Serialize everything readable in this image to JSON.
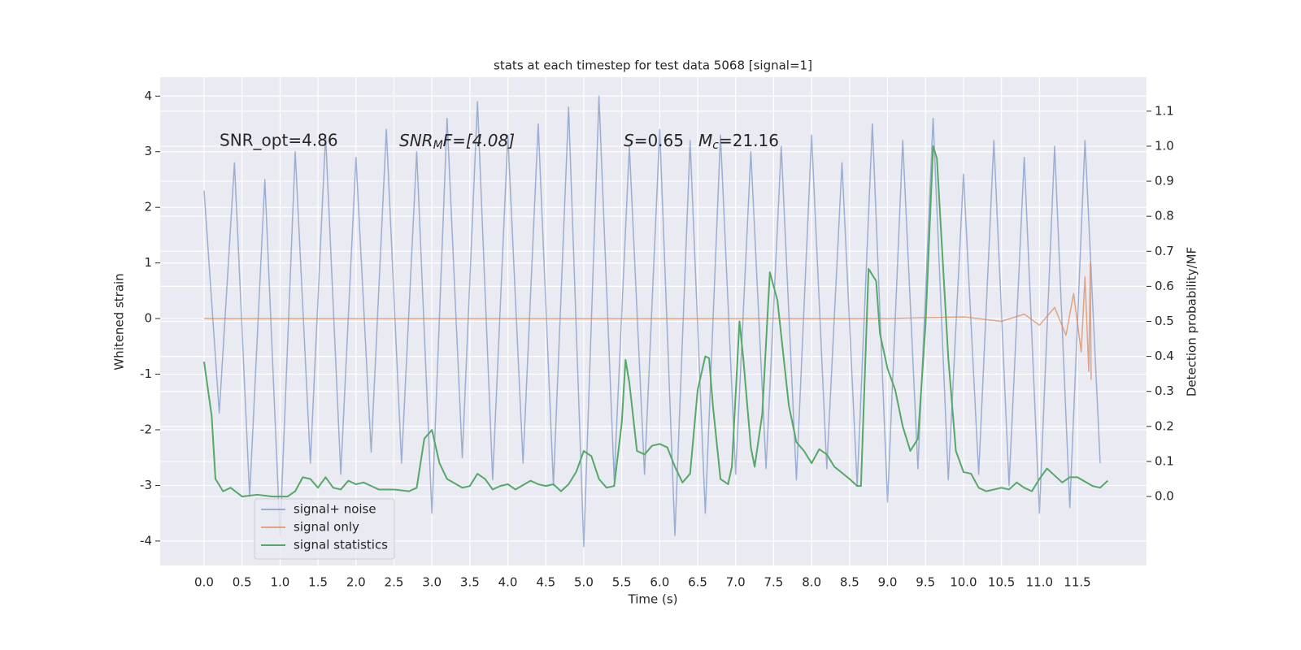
{
  "chart_data": {
    "type": "line",
    "title": "stats at each timestep for test data 5068 [signal=1]",
    "x_label": "Time (s)",
    "y_label": "Whitened strain",
    "y2_label": "Detection probability/MF",
    "annotations": [
      {
        "text": "SNR_opt=4.86"
      },
      {
        "italic": "SNR",
        "sub": "M",
        "text": "F=[4.08]"
      },
      {
        "italic": "S",
        "text": "=0.65"
      },
      {
        "italic": "M",
        "sub": "c",
        "text": "=21.16"
      }
    ],
    "xlim": [
      -0.578,
      12.41
    ],
    "ylim": [
      -4.44,
      4.34
    ],
    "y2lim": [
      -0.197,
      1.197
    ],
    "xticks": [
      {
        "value": 0,
        "label": "0.0"
      },
      0.5,
      {
        "value": 1,
        "label": "1.0"
      },
      1.5,
      {
        "value": 2,
        "label": "2.0"
      },
      2.5,
      {
        "value": 3,
        "label": "3.0"
      },
      3.5,
      {
        "value": 4,
        "label": "4.0"
      },
      4.5,
      {
        "value": 5,
        "label": "5.0"
      },
      5.5,
      {
        "value": 6,
        "label": "6.0"
      },
      6.5,
      {
        "value": 7,
        "label": "7.0"
      },
      7.5,
      {
        "value": 8,
        "label": "8.0"
      },
      8.5,
      {
        "value": 9,
        "label": "9.0"
      },
      9.5,
      {
        "value": 10,
        "label": "10.0"
      },
      10.5,
      {
        "value": 11,
        "label": "11.0"
      },
      11.5
    ],
    "yticks": [
      -4,
      -3,
      -2,
      -1,
      0,
      1,
      2,
      3,
      4
    ],
    "y2ticks": [
      {
        "value": 0,
        "label": "0.0"
      },
      0.1,
      0.2,
      0.3,
      0.4,
      0.5,
      0.6,
      0.7,
      0.8,
      0.9,
      {
        "value": 1,
        "label": "1.0"
      },
      1.1
    ],
    "grid": true,
    "legend": "lower left",
    "series": [
      {
        "name": "signal+ noise",
        "color": "#4c72b0",
        "opacity": 0.5,
        "x": [
          0,
          0.2,
          0.4,
          0.6,
          0.8,
          1,
          1.2,
          1.4,
          1.6,
          1.8,
          2,
          2.2,
          2.4,
          2.6,
          2.8,
          3,
          3.2,
          3.4,
          3.6,
          3.8,
          4,
          4.2,
          4.4,
          4.6,
          4.8,
          5,
          5.2,
          5.4,
          5.6,
          5.8,
          6,
          6.2,
          6.4,
          6.6,
          6.8,
          7,
          7.2,
          7.4,
          7.6,
          7.8,
          8,
          8.2,
          8.4,
          8.6,
          8.8,
          9,
          9.2,
          9.4,
          9.6,
          9.8,
          10,
          10.2,
          10.4,
          10.6,
          10.8,
          11,
          11.2,
          11.4,
          11.6,
          11.8
        ],
        "values": [
          2.3,
          -1.7,
          2.8,
          -3.2,
          2.5,
          -3.9,
          3.0,
          -2.6,
          3.3,
          -2.8,
          2.9,
          -2.4,
          3.4,
          -2.6,
          3.0,
          -3.5,
          3.6,
          -2.5,
          3.9,
          -2.9,
          3.3,
          -2.6,
          3.5,
          -3.0,
          3.8,
          -4.1,
          4.0,
          -2.9,
          3.1,
          -2.8,
          3.4,
          -3.9,
          3.2,
          -3.5,
          3.3,
          -2.8,
          3.0,
          -2.7,
          3.1,
          -2.9,
          3.3,
          -2.7,
          2.8,
          -3.0,
          3.5,
          -3.3,
          3.2,
          -2.7,
          3.6,
          -2.9,
          2.6,
          -2.8,
          3.2,
          -3.0,
          2.9,
          -3.5,
          3.1,
          -3.4,
          3.2,
          -2.6
        ]
      },
      {
        "name": "signal only",
        "color": "#dd8452",
        "opacity": 0.7,
        "x": [
          0,
          9,
          10,
          10.5,
          10.8,
          11.0,
          11.2,
          11.35,
          11.45,
          11.55,
          11.6,
          11.65,
          11.67,
          11.68
        ],
        "values": [
          0,
          0,
          0.03,
          -0.05,
          0.08,
          -0.12,
          0.2,
          -0.3,
          0.45,
          -0.6,
          0.75,
          -0.95,
          1.0,
          -1.1
        ]
      },
      {
        "name": "signal statistics",
        "color": "#55a868",
        "opacity": 1,
        "axis": "y2",
        "x": [
          0,
          0.1,
          0.15,
          0.25,
          0.35,
          0.5,
          0.7,
          0.9,
          1.1,
          1.2,
          1.3,
          1.4,
          1.5,
          1.6,
          1.7,
          1.8,
          1.9,
          2.0,
          2.1,
          2.2,
          2.3,
          2.5,
          2.7,
          2.8,
          2.9,
          3.0,
          3.1,
          3.2,
          3.4,
          3.5,
          3.6,
          3.7,
          3.8,
          3.9,
          4.0,
          4.1,
          4.3,
          4.4,
          4.5,
          4.6,
          4.7,
          4.8,
          4.9,
          5.0,
          5.1,
          5.2,
          5.3,
          5.4,
          5.5,
          5.55,
          5.6,
          5.7,
          5.8,
          5.9,
          6.0,
          6.1,
          6.2,
          6.3,
          6.4,
          6.5,
          6.6,
          6.65,
          6.7,
          6.8,
          6.9,
          6.95,
          7.05,
          7.1,
          7.2,
          7.25,
          7.35,
          7.45,
          7.55,
          7.7,
          7.8,
          7.9,
          8.0,
          8.1,
          8.2,
          8.3,
          8.5,
          8.6,
          8.65,
          8.75,
          8.85,
          8.9,
          9.0,
          9.1,
          9.2,
          9.3,
          9.4,
          9.5,
          9.6,
          9.65,
          9.8,
          9.9,
          10.0,
          10.1,
          10.2,
          10.3,
          10.5,
          10.6,
          10.7,
          10.8,
          10.9,
          11.0,
          11.1,
          11.2,
          11.3,
          11.4,
          11.5,
          11.7,
          11.8,
          11.9
        ],
        "values": [
          0.385,
          0.23,
          0.05,
          0.015,
          0.025,
          0,
          0.005,
          0,
          0,
          0.015,
          0.055,
          0.05,
          0.025,
          0.055,
          0.025,
          0.02,
          0.045,
          0.035,
          0.04,
          0.03,
          0.02,
          0.02,
          0.015,
          0.025,
          0.165,
          0.19,
          0.095,
          0.05,
          0.025,
          0.03,
          0.065,
          0.05,
          0.02,
          0.03,
          0.035,
          0.02,
          0.045,
          0.035,
          0.03,
          0.035,
          0.015,
          0.035,
          0.07,
          0.13,
          0.115,
          0.05,
          0.025,
          0.03,
          0.21,
          0.39,
          0.325,
          0.13,
          0.12,
          0.145,
          0.15,
          0.14,
          0.085,
          0.04,
          0.065,
          0.305,
          0.4,
          0.395,
          0.26,
          0.05,
          0.035,
          0.085,
          0.5,
          0.395,
          0.14,
          0.085,
          0.235,
          0.64,
          0.56,
          0.26,
          0.155,
          0.13,
          0.095,
          0.135,
          0.12,
          0.085,
          0.05,
          0.03,
          0.03,
          0.65,
          0.615,
          0.465,
          0.365,
          0.305,
          0.2,
          0.13,
          0.165,
          0.49,
          1.0,
          0.965,
          0.395,
          0.13,
          0.07,
          0.065,
          0.025,
          0.015,
          0.025,
          0.02,
          0.04,
          0.025,
          0.015,
          0.05,
          0.08,
          0.06,
          0.04,
          0.055,
          0.055,
          0.03,
          0.025,
          0.045
        ]
      }
    ]
  }
}
